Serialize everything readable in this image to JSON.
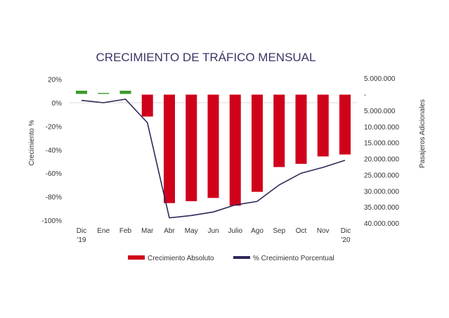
{
  "chart_data": {
    "type": "bar+line",
    "title": "CRECIMIENTO DE TRÁFICO MENSUAL",
    "categories": [
      "Dic '19",
      "Ene",
      "Feb",
      "Mar",
      "Abr",
      "May",
      "Jun",
      "Julio",
      "Ago",
      "Sep",
      "Oct",
      "Nov",
      "Dic '20"
    ],
    "category_lines": [
      [
        "Dic",
        "'19"
      ],
      [
        "Ene"
      ],
      [
        "Feb"
      ],
      [
        "Mar"
      ],
      [
        "Abr"
      ],
      [
        "May"
      ],
      [
        "Jun"
      ],
      [
        "Julio"
      ],
      [
        "Ago"
      ],
      [
        "Sep"
      ],
      [
        "Oct"
      ],
      [
        "Nov"
      ],
      [
        "Dic",
        "'20"
      ]
    ],
    "ylabel_left": "Crecimiento %",
    "ylabel_right": "Pasajeros Adicionales",
    "left_ticks": [
      "20%",
      "0%",
      "-20%",
      "-40%",
      "-60%",
      "-80%",
      "-100%"
    ],
    "left_tick_values": [
      20,
      0,
      -20,
      -40,
      -60,
      -80,
      -100
    ],
    "ylim_left": [
      -100,
      20
    ],
    "right_ticks": [
      "5.000.000",
      "-",
      "5.000.000",
      "10.000.000",
      "15.000.000",
      "20.000.000",
      "25.000.000",
      "30.000.000",
      "35.000.000",
      "40.000.000"
    ],
    "right_tick_values": [
      5000000,
      0,
      -5000000,
      -10000000,
      -15000000,
      -20000000,
      -25000000,
      -30000000,
      -35000000,
      -40000000
    ],
    "ylim_right": [
      -40000000,
      5000000
    ],
    "series": [
      {
        "name": "Crecimiento Absoluto",
        "type": "bar",
        "color": "#d0021b",
        "positive_color": "#3a9a2a",
        "values": [
          1000000,
          300000,
          1000000,
          -6800000,
          -33700000,
          -33100000,
          -32100000,
          -34500000,
          -30200000,
          -22500000,
          -21500000,
          -19200000,
          -18600000
        ]
      },
      {
        "name": "% Crecimiento Porcentual",
        "type": "line",
        "color": "#2e2a5a",
        "values": [
          2,
          0,
          3,
          -17,
          -98,
          -96,
          -93,
          -87,
          -84,
          -70,
          -60,
          -55,
          -49
        ]
      }
    ],
    "legend": "bottom"
  }
}
